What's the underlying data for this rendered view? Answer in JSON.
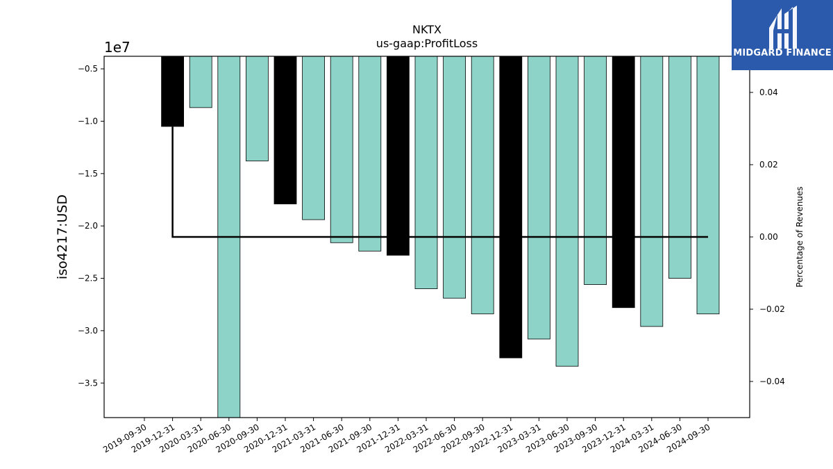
{
  "chart_data": {
    "type": "bar",
    "title": "NKTX",
    "subtitle": "us-gaap:ProfitLoss",
    "ylabel": "iso4217:USD",
    "y2label": "Percentage of Revenues",
    "y_exponent_label": "1e7",
    "categories": [
      "2019-09-30",
      "2019-12-31",
      "2020-03-31",
      "2020-06-30",
      "2020-09-30",
      "2020-12-31",
      "2021-03-31",
      "2021-06-30",
      "2021-09-30",
      "2021-12-31",
      "2022-03-31",
      "2022-06-30",
      "2022-09-30",
      "2022-12-31",
      "2023-03-31",
      "2023-06-30",
      "2023-09-30",
      "2023-12-31",
      "2024-03-31",
      "2024-06-30",
      "2024-09-30"
    ],
    "values": [
      null,
      -10500000,
      -8700000,
      -38500000,
      -13800000,
      -17900000,
      -19400000,
      -21600000,
      -22400000,
      -22800000,
      -26000000,
      -26900000,
      -28400000,
      -32600000,
      -30800000,
      -33400000,
      -25600000,
      -27800000,
      -29600000,
      -25000000,
      -28400000
    ],
    "annual_flags": [
      false,
      true,
      false,
      false,
      false,
      true,
      false,
      false,
      false,
      true,
      false,
      false,
      false,
      true,
      false,
      false,
      false,
      true,
      false,
      false,
      false
    ],
    "colors": {
      "quarterly": "#8dd3c7",
      "annual": "#000000"
    },
    "ylim": [
      -38300000,
      -3800000
    ],
    "yticks": [
      -5000000,
      -10000000,
      -15000000,
      -20000000,
      -25000000,
      -30000000,
      -35000000
    ],
    "ytick_labels": [
      "−0.5",
      "−1.0",
      "−1.5",
      "−2.0",
      "−2.5",
      "−3.0",
      "−3.5"
    ],
    "y2lim": [
      -0.05,
      0.05
    ],
    "y2ticks": [
      0.04,
      0.02,
      0.0,
      -0.02,
      -0.04
    ],
    "y2tick_labels": [
      "0.04",
      "0.02",
      "0.00",
      "−0.02",
      "−0.04"
    ],
    "line_series": {
      "axis": "y2",
      "x": [
        "2019-12-31",
        "2019-12-31",
        "2024-09-30"
      ],
      "y": [
        0.0305,
        0.0,
        0.0
      ]
    },
    "grid": false
  },
  "logo": {
    "text": "MIDGARD FINANCE"
  }
}
